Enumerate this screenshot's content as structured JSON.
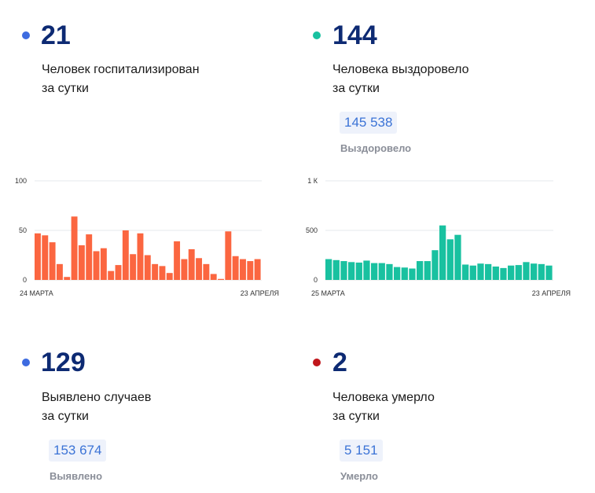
{
  "stats": {
    "hospitalized": {
      "value": "21",
      "line1": "Человек госпитализирован",
      "line2": "за сутки",
      "color": "#3d6be0"
    },
    "recovered": {
      "value": "144",
      "line1": "Человека выздоровело",
      "line2": "за сутки",
      "total": "145 538",
      "total_label": "Выздоровело",
      "color": "#19c1a0"
    },
    "cases": {
      "value": "129",
      "line1": "Выявлено случаев",
      "line2": "за сутки",
      "total": "153 674",
      "total_label": "Выявлено",
      "color": "#3d6be0"
    },
    "deaths": {
      "value": "2",
      "line1": "Человека умерло",
      "line2": "за сутки",
      "total": "5 151",
      "total_label": "Умерло",
      "color": "#c0161b"
    }
  },
  "chart_data": [
    {
      "type": "bar",
      "color": "#fb6640",
      "x_start": "24 МАРТА",
      "x_end": "23 АПРЕЛЯ",
      "yticks": [
        "100",
        "50",
        "0"
      ],
      "ylim": [
        0,
        100
      ],
      "grid": true,
      "values": [
        47,
        45,
        38,
        16,
        3,
        64,
        35,
        46,
        29,
        32,
        9,
        15,
        50,
        26,
        47,
        25,
        16,
        14,
        7,
        39,
        21,
        31,
        22,
        16,
        6,
        1,
        49,
        24,
        21,
        19,
        21
      ]
    },
    {
      "type": "bar",
      "color": "#19c1a0",
      "x_start": "25 МАРТА",
      "x_end": "23 АПРЕЛЯ",
      "yticks": [
        "1 К",
        "500",
        "0"
      ],
      "ylim": [
        0,
        1000
      ],
      "grid": true,
      "values": [
        210,
        200,
        190,
        180,
        175,
        195,
        170,
        170,
        160,
        130,
        125,
        115,
        190,
        190,
        300,
        550,
        410,
        455,
        155,
        145,
        165,
        160,
        135,
        120,
        145,
        150,
        180,
        165,
        160,
        145
      ]
    }
  ]
}
